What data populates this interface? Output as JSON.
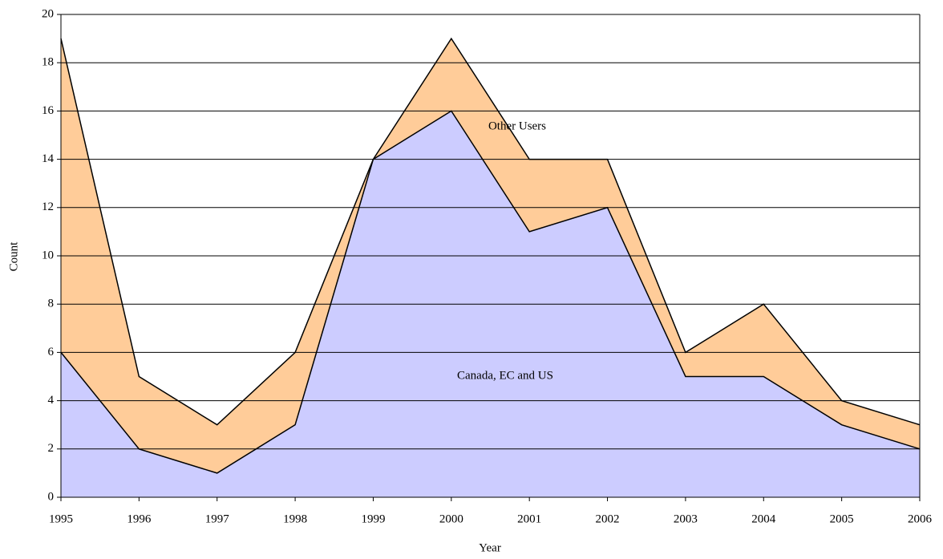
{
  "chart_data": {
    "type": "stacked_area",
    "x_label": "Year",
    "y_label": "Count",
    "x": [
      1995,
      1996,
      1997,
      1998,
      1999,
      2000,
      2001,
      2002,
      2003,
      2004,
      2005,
      2006
    ],
    "series": [
      {
        "name": "Canada, EC and US",
        "color": "#ccccff",
        "values": [
          6,
          2,
          1,
          3,
          14,
          16,
          11,
          12,
          5,
          5,
          3,
          2
        ]
      },
      {
        "name": "Other Users",
        "color": "#ffcc99",
        "values": [
          13,
          3,
          2,
          3,
          0,
          3,
          3,
          2,
          1,
          3,
          1,
          1
        ]
      }
    ],
    "xlim": [
      1995,
      2006
    ],
    "xticks": [
      1995,
      1996,
      1997,
      1998,
      1999,
      2000,
      2001,
      2002,
      2003,
      2004,
      2005,
      2006
    ],
    "ylim": [
      0,
      20
    ],
    "yticks": [
      0,
      2,
      4,
      6,
      8,
      10,
      12,
      14,
      16,
      18,
      20
    ],
    "grid": true
  }
}
